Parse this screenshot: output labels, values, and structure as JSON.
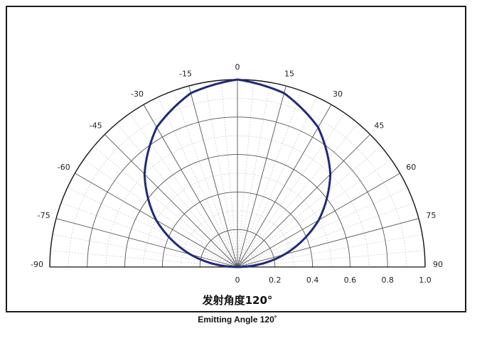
{
  "chart_data": {
    "type": "polar",
    "angle_unit": "degrees",
    "angle_range": [
      -90,
      90
    ],
    "angle_ticks": [
      -90,
      -75,
      -60,
      -45,
      -30,
      -15,
      0,
      15,
      30,
      45,
      60,
      75,
      90
    ],
    "radial_range": [
      0,
      1
    ],
    "radial_ticks": [
      "0",
      "0.2",
      "0.4",
      "0.6",
      "0.8",
      "1.0"
    ],
    "radial_tick_values": [
      0,
      0.2,
      0.4,
      0.6,
      0.8,
      1.0
    ],
    "grid": true,
    "series": [
      {
        "color": "#1f2a78",
        "points": [
          {
            "angle": 0,
            "r": 1.0
          },
          {
            "angle": 15,
            "r": 0.96
          },
          {
            "angle": 30,
            "r": 0.86
          },
          {
            "angle": 45,
            "r": 0.7
          },
          {
            "angle": 60,
            "r": 0.5
          },
          {
            "angle": 75,
            "r": 0.26
          },
          {
            "angle": 90,
            "r": 0.0
          }
        ]
      }
    ],
    "caption_cn": "发射角度120°",
    "caption_en": "Emitting Angle 120˚"
  }
}
